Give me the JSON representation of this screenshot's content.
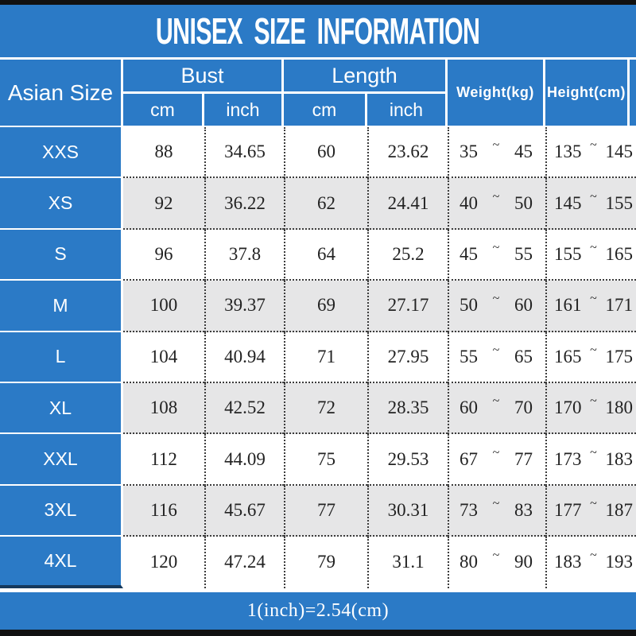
{
  "title": "UNISEX SIZE INFORMATION",
  "header": {
    "asian_size": "Asian Size",
    "bust": "Bust",
    "length": "Length",
    "bust_cm": "cm",
    "bust_inch": "inch",
    "length_cm": "cm",
    "length_inch": "inch",
    "weight": "Weight(kg)",
    "height": "Height(cm)"
  },
  "symbols": {
    "tilde": "~"
  },
  "rows": [
    {
      "size": "XXS",
      "bust_cm": "88",
      "bust_inch": "34.65",
      "length_cm": "60",
      "length_inch": "23.62",
      "weight_min": "35",
      "weight_max": "45",
      "height_min": "135",
      "height_max": "145"
    },
    {
      "size": "XS",
      "bust_cm": "92",
      "bust_inch": "36.22",
      "length_cm": "62",
      "length_inch": "24.41",
      "weight_min": "40",
      "weight_max": "50",
      "height_min": "145",
      "height_max": "155"
    },
    {
      "size": "S",
      "bust_cm": "96",
      "bust_inch": "37.8",
      "length_cm": "64",
      "length_inch": "25.2",
      "weight_min": "45",
      "weight_max": "55",
      "height_min": "155",
      "height_max": "165"
    },
    {
      "size": "M",
      "bust_cm": "100",
      "bust_inch": "39.37",
      "length_cm": "69",
      "length_inch": "27.17",
      "weight_min": "50",
      "weight_max": "60",
      "height_min": "161",
      "height_max": "171"
    },
    {
      "size": "L",
      "bust_cm": "104",
      "bust_inch": "40.94",
      "length_cm": "71",
      "length_inch": "27.95",
      "weight_min": "55",
      "weight_max": "65",
      "height_min": "165",
      "height_max": "175"
    },
    {
      "size": "XL",
      "bust_cm": "108",
      "bust_inch": "42.52",
      "length_cm": "72",
      "length_inch": "28.35",
      "weight_min": "60",
      "weight_max": "70",
      "height_min": "170",
      "height_max": "180"
    },
    {
      "size": "XXL",
      "bust_cm": "112",
      "bust_inch": "44.09",
      "length_cm": "75",
      "length_inch": "29.53",
      "weight_min": "67",
      "weight_max": "77",
      "height_min": "173",
      "height_max": "183"
    },
    {
      "size": "3XL",
      "bust_cm": "116",
      "bust_inch": "45.67",
      "length_cm": "77",
      "length_inch": "30.31",
      "weight_min": "73",
      "weight_max": "83",
      "height_min": "177",
      "height_max": "187"
    },
    {
      "size": "4XL",
      "bust_cm": "120",
      "bust_inch": "47.24",
      "length_cm": "79",
      "length_inch": "31.1",
      "weight_min": "80",
      "weight_max": "90",
      "height_min": "183",
      "height_max": "193"
    }
  ],
  "footer": {
    "note": "1(inch)=2.54(cm)"
  },
  "colors": {
    "blue": "#2B7AC6",
    "alt_row": "#E6E6E7",
    "black_bar": "#111111",
    "dotted": "#3C3C3C",
    "dark_edge": "#16395C"
  }
}
